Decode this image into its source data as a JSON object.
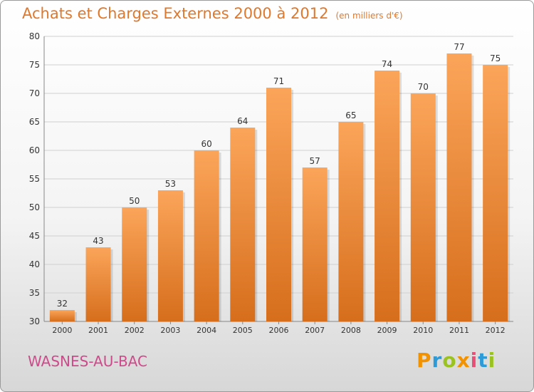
{
  "title": "Achats et Charges Externes 2000 à 2012",
  "unit": "(en milliers d'€)",
  "city": "WASNES-AU-BAC",
  "logo": {
    "text": "Proxiti",
    "colors": [
      "#f39200",
      "#2d9bd7",
      "#9bc31f",
      "#f39200",
      "#e94e77",
      "#2d9bd7",
      "#9bc31f"
    ]
  },
  "colors": {
    "bar_top": "#fba55a",
    "bar_bottom": "#d66e1c",
    "grid": "#d0d0d0",
    "text": "#333333"
  },
  "chart_data": {
    "type": "bar",
    "title": "Achats et Charges Externes 2000 à 2012",
    "xlabel": "",
    "ylabel": "",
    "categories": [
      "2000",
      "2001",
      "2002",
      "2003",
      "2004",
      "2005",
      "2006",
      "2007",
      "2008",
      "2009",
      "2010",
      "2011",
      "2012"
    ],
    "values": [
      32,
      43,
      50,
      53,
      60,
      64,
      71,
      57,
      65,
      74,
      70,
      77,
      75
    ],
    "ylim": [
      30,
      80
    ],
    "yticks": [
      30,
      35,
      40,
      45,
      50,
      55,
      60,
      65,
      70,
      75,
      80
    ],
    "grid": true
  }
}
